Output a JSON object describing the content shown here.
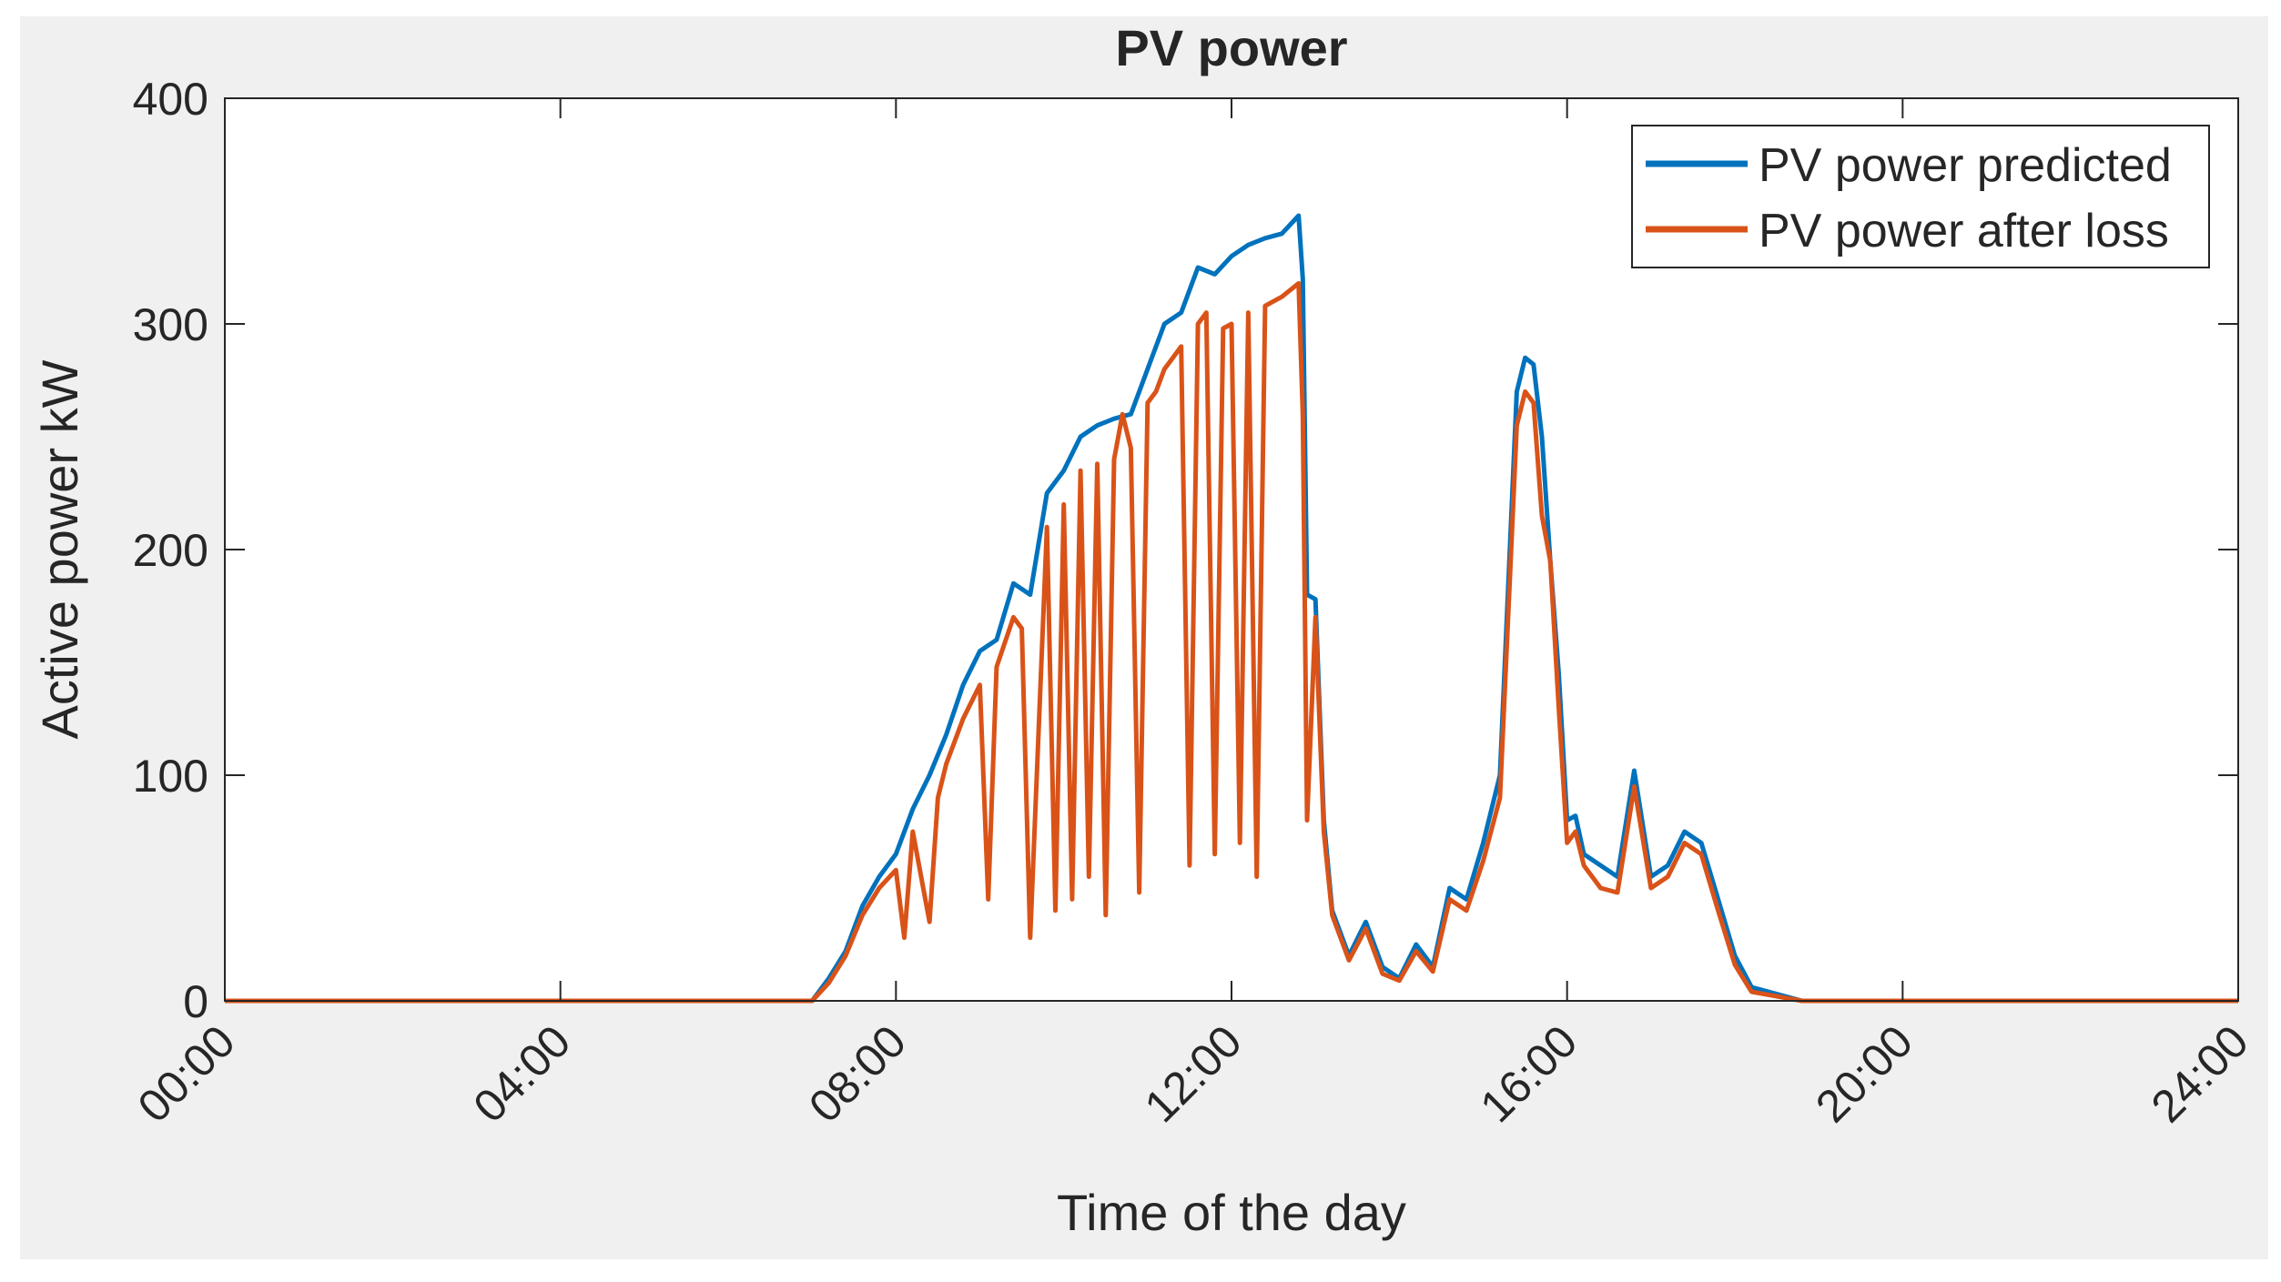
{
  "chart_data": {
    "type": "line",
    "title": "PV power",
    "xlabel": "Time of the day",
    "ylabel": "Active power kW",
    "xlim": [
      0,
      24
    ],
    "ylim": [
      0,
      400
    ],
    "x_ticks": [
      0,
      4,
      8,
      12,
      16,
      20,
      24
    ],
    "x_tick_labels": [
      "00:00",
      "04:00",
      "08:00",
      "12:00",
      "16:00",
      "20:00",
      "24:00"
    ],
    "y_ticks": [
      0,
      100,
      200,
      300,
      400
    ],
    "y_tick_labels": [
      "0",
      "100",
      "200",
      "300",
      "400"
    ],
    "legend_position": "top-right",
    "grid": false,
    "colors": {
      "background": "#f0f0f0",
      "axes": "#ffffff",
      "axis_line": "#262626",
      "predicted": "#0072bd",
      "after_loss": "#d95319"
    },
    "series": [
      {
        "name": "PV power predicted",
        "color": "#0072bd",
        "x": [
          0,
          7.0,
          7.2,
          7.4,
          7.6,
          7.8,
          8.0,
          8.2,
          8.4,
          8.6,
          8.8,
          9.0,
          9.2,
          9.4,
          9.6,
          9.8,
          10.0,
          10.2,
          10.4,
          10.6,
          10.8,
          11.0,
          11.2,
          11.4,
          11.6,
          11.8,
          12.0,
          12.2,
          12.4,
          12.6,
          12.8,
          12.85,
          12.9,
          13.0,
          13.1,
          13.2,
          13.4,
          13.6,
          13.8,
          14.0,
          14.2,
          14.4,
          14.6,
          14.8,
          15.0,
          15.2,
          15.4,
          15.5,
          15.6,
          15.7,
          15.8,
          15.9,
          16.0,
          16.1,
          16.2,
          16.4,
          16.6,
          16.8,
          17.0,
          17.2,
          17.4,
          17.6,
          17.8,
          18.0,
          18.2,
          18.5,
          18.8,
          19.0,
          24
        ],
        "y": [
          0,
          0,
          10,
          22,
          42,
          55,
          65,
          85,
          100,
          118,
          140,
          155,
          160,
          185,
          180,
          225,
          235,
          250,
          255,
          258,
          260,
          280,
          300,
          305,
          325,
          322,
          330,
          335,
          338,
          340,
          348,
          320,
          180,
          178,
          80,
          40,
          20,
          35,
          15,
          10,
          25,
          15,
          50,
          45,
          70,
          100,
          270,
          285,
          282,
          250,
          195,
          145,
          80,
          82,
          65,
          60,
          55,
          102,
          55,
          60,
          75,
          70,
          45,
          20,
          6,
          3,
          0,
          0,
          0
        ]
      },
      {
        "name": "PV power after loss",
        "color": "#d95319",
        "x": [
          0,
          7.0,
          7.2,
          7.4,
          7.6,
          7.8,
          8.0,
          8.1,
          8.2,
          8.4,
          8.5,
          8.6,
          8.8,
          9.0,
          9.1,
          9.2,
          9.4,
          9.5,
          9.6,
          9.8,
          9.9,
          10.0,
          10.1,
          10.2,
          10.3,
          10.4,
          10.5,
          10.6,
          10.7,
          10.8,
          10.9,
          11.0,
          11.1,
          11.2,
          11.3,
          11.4,
          11.5,
          11.6,
          11.7,
          11.8,
          11.9,
          12.0,
          12.1,
          12.2,
          12.3,
          12.4,
          12.5,
          12.6,
          12.7,
          12.8,
          12.85,
          12.9,
          13.0,
          13.1,
          13.2,
          13.4,
          13.6,
          13.8,
          14.0,
          14.2,
          14.4,
          14.6,
          14.8,
          15.0,
          15.2,
          15.4,
          15.5,
          15.6,
          15.7,
          15.8,
          15.9,
          16.0,
          16.1,
          16.2,
          16.4,
          16.6,
          16.8,
          17.0,
          17.2,
          17.4,
          17.6,
          17.8,
          18.0,
          18.2,
          18.5,
          18.8,
          19.0,
          24
        ],
        "y": [
          0,
          0,
          8,
          20,
          38,
          50,
          58,
          28,
          75,
          35,
          90,
          105,
          125,
          140,
          45,
          148,
          170,
          165,
          28,
          210,
          40,
          220,
          45,
          235,
          55,
          238,
          38,
          240,
          260,
          245,
          48,
          265,
          270,
          280,
          285,
          290,
          60,
          300,
          305,
          65,
          298,
          300,
          70,
          305,
          55,
          308,
          310,
          312,
          315,
          318,
          260,
          80,
          170,
          75,
          38,
          18,
          32,
          12,
          9,
          22,
          13,
          45,
          40,
          62,
          90,
          255,
          270,
          265,
          215,
          195,
          130,
          70,
          75,
          60,
          50,
          48,
          95,
          50,
          55,
          70,
          65,
          40,
          16,
          4,
          2,
          0,
          0,
          0
        ]
      }
    ]
  }
}
